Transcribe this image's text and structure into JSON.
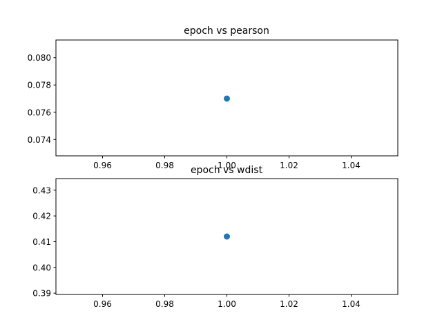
{
  "chart_data": [
    {
      "type": "scatter",
      "title": "epoch vs pearson",
      "xlabel": "",
      "ylabel": "",
      "x": [
        1.0
      ],
      "y": [
        0.077
      ],
      "xlim": [
        0.945,
        1.055
      ],
      "ylim": [
        0.0728,
        0.0813
      ],
      "xticks": [
        0.96,
        0.98,
        1.0,
        1.02,
        1.04
      ],
      "xtick_labels": [
        "0.96",
        "0.98",
        "1.00",
        "1.02",
        "1.04"
      ],
      "yticks": [
        0.074,
        0.076,
        0.078,
        0.08
      ],
      "ytick_labels": [
        "0.074",
        "0.076",
        "0.078",
        "0.080"
      ],
      "grid": false,
      "color": "#1f77b4"
    },
    {
      "type": "scatter",
      "title": "epoch vs wdist",
      "xlabel": "",
      "ylabel": "",
      "x": [
        1.0
      ],
      "y": [
        0.412
      ],
      "xlim": [
        0.945,
        1.055
      ],
      "ylim": [
        0.3895,
        0.4345
      ],
      "xticks": [
        0.96,
        0.98,
        1.0,
        1.02,
        1.04
      ],
      "xtick_labels": [
        "0.96",
        "0.98",
        "1.00",
        "1.02",
        "1.04"
      ],
      "yticks": [
        0.39,
        0.4,
        0.41,
        0.42,
        0.43
      ],
      "ytick_labels": [
        "0.39",
        "0.40",
        "0.41",
        "0.42",
        "0.43"
      ],
      "grid": false,
      "color": "#1f77b4"
    }
  ]
}
